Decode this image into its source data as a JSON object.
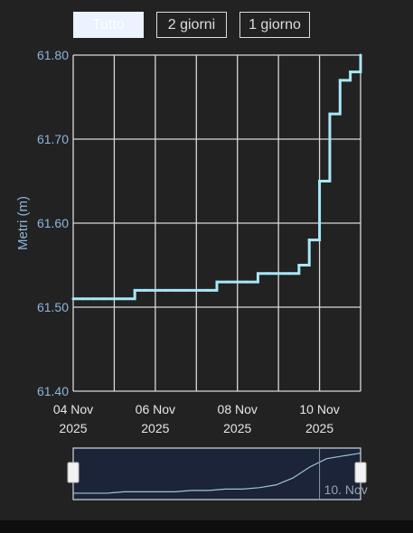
{
  "range_selector": {
    "buttons": [
      {
        "label": "Tutto",
        "active": true
      },
      {
        "label": "2 giorni",
        "active": false
      },
      {
        "label": "1 giorno",
        "active": false
      }
    ]
  },
  "colors": {
    "background": "#222222",
    "series": "#a8e8f8",
    "axis_label": "#8db4dd",
    "grid": "#d8d8d8",
    "tick_text": "#e6e6e6",
    "navigator_fill": "#1b2438",
    "navigator_line": "#9fc3dc"
  },
  "chart_data": {
    "type": "line",
    "ylabel": "Metri (m)",
    "ylim": [
      61.4,
      61.8
    ],
    "yticks": [
      "61.80",
      "61.70",
      "61.60",
      "61.50",
      "61.40"
    ],
    "xlim": [
      "2025-11-04",
      "2025-11-11 00:00"
    ],
    "xticks": [
      {
        "date": "2025-11-04",
        "line1": "04 Nov",
        "line2": "2025"
      },
      {
        "date": "2025-11-06",
        "line1": "06 Nov",
        "line2": "2025"
      },
      {
        "date": "2025-11-08",
        "line1": "08 Nov",
        "line2": "2025"
      },
      {
        "date": "2025-11-10",
        "line1": "10 Nov",
        "line2": "2025"
      }
    ],
    "grid": true,
    "series": [
      {
        "x": [
          "2025-11-04 00:00",
          "2025-11-04 06:00",
          "2025-11-04 12:00",
          "2025-11-04 18:00",
          "2025-11-05 00:00",
          "2025-11-05 06:00",
          "2025-11-05 12:00",
          "2025-11-05 18:00",
          "2025-11-06 00:00",
          "2025-11-06 06:00",
          "2025-11-06 12:00",
          "2025-11-06 18:00",
          "2025-11-07 00:00",
          "2025-11-07 06:00",
          "2025-11-07 12:00",
          "2025-11-07 18:00",
          "2025-11-08 00:00",
          "2025-11-08 06:00",
          "2025-11-08 12:00",
          "2025-11-08 18:00",
          "2025-11-09 00:00",
          "2025-11-09 06:00",
          "2025-11-09 12:00",
          "2025-11-09 18:00",
          "2025-11-10 00:00",
          "2025-11-10 06:00",
          "2025-11-10 12:00",
          "2025-11-10 18:00",
          "2025-11-11 00:00"
        ],
        "values": [
          61.51,
          61.51,
          61.51,
          61.51,
          61.51,
          61.51,
          61.52,
          61.52,
          61.52,
          61.52,
          61.52,
          61.52,
          61.52,
          61.52,
          61.53,
          61.53,
          61.53,
          61.53,
          61.54,
          61.54,
          61.54,
          61.54,
          61.55,
          61.58,
          61.65,
          61.73,
          61.77,
          61.78,
          61.8
        ]
      }
    ],
    "navigator": {
      "label": "10. Nov",
      "values": [
        61.51,
        61.51,
        61.51,
        61.52,
        61.52,
        61.52,
        61.52,
        61.53,
        61.53,
        61.54,
        61.54,
        61.55,
        61.57,
        61.62,
        61.7,
        61.76,
        61.78,
        61.8
      ]
    }
  }
}
